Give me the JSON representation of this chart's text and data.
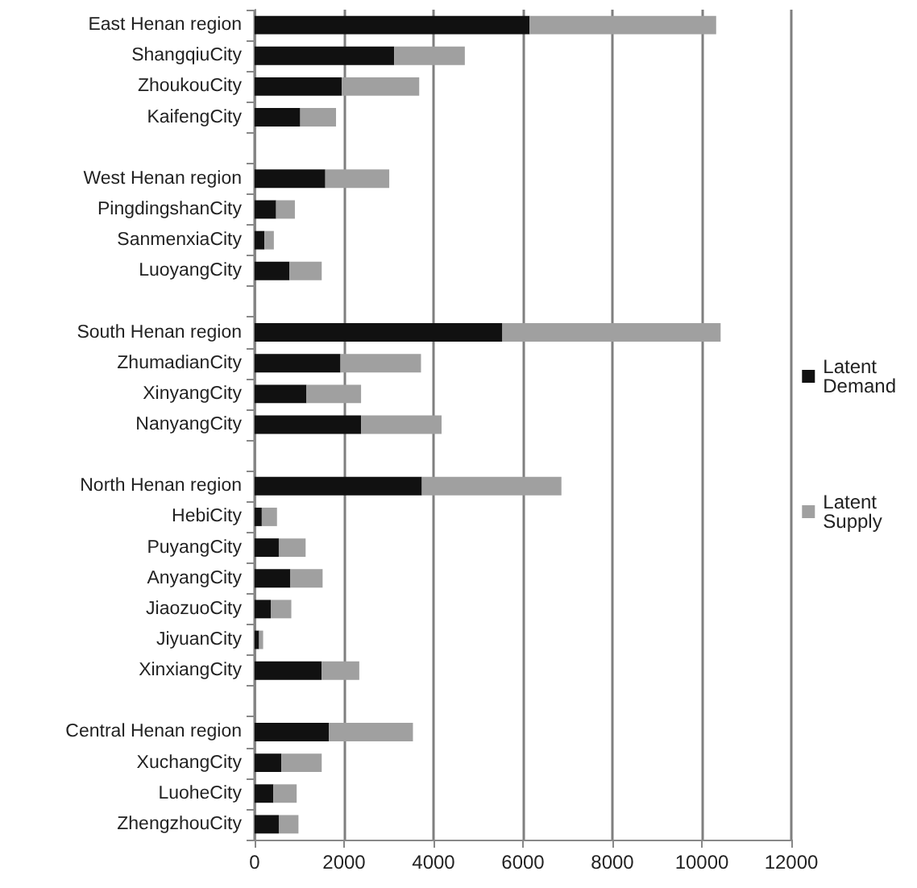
{
  "chart_data": {
    "type": "bar",
    "orientation": "horizontal",
    "stacked": true,
    "categories": [
      "East Henan region",
      "ShangqiuCity",
      "ZhoukouCity",
      "KaifengCity",
      null,
      "West Henan region",
      "PingdingshanCity",
      "SanmenxiaCity",
      "LuoyangCity",
      null,
      "South Henan region",
      "ZhumadianCity",
      "XinyangCity",
      "NanyangCity",
      null,
      "North Henan region",
      "HebiCity",
      "PuyangCity",
      "AnyangCity",
      "JiaozuoCity",
      "JiyuanCity",
      "XinxiangCity",
      null,
      "Central Henan region",
      "XuchangCity",
      "LuoheCity",
      "ZhengzhouCity"
    ],
    "series": [
      {
        "name": "Latent Demand",
        "color": "#111111",
        "values": [
          6150,
          3120,
          1950,
          1020,
          null,
          1580,
          480,
          220,
          780,
          null,
          5540,
          1920,
          1160,
          2380,
          null,
          3740,
          160,
          540,
          800,
          360,
          100,
          1500,
          null,
          1660,
          600,
          420,
          540
        ]
      },
      {
        "name": "Latent Supply",
        "color": "#a0a0a0",
        "values": [
          4170,
          1580,
          1730,
          800,
          null,
          1430,
          420,
          210,
          720,
          null,
          4880,
          1800,
          1220,
          1800,
          null,
          3120,
          340,
          600,
          720,
          460,
          90,
          840,
          null,
          1880,
          900,
          520,
          440
        ]
      }
    ],
    "xlim": [
      0,
      12000
    ],
    "xticks": [
      0,
      2000,
      4000,
      6000,
      8000,
      10000,
      12000
    ],
    "grid": "x",
    "legend": "right"
  }
}
